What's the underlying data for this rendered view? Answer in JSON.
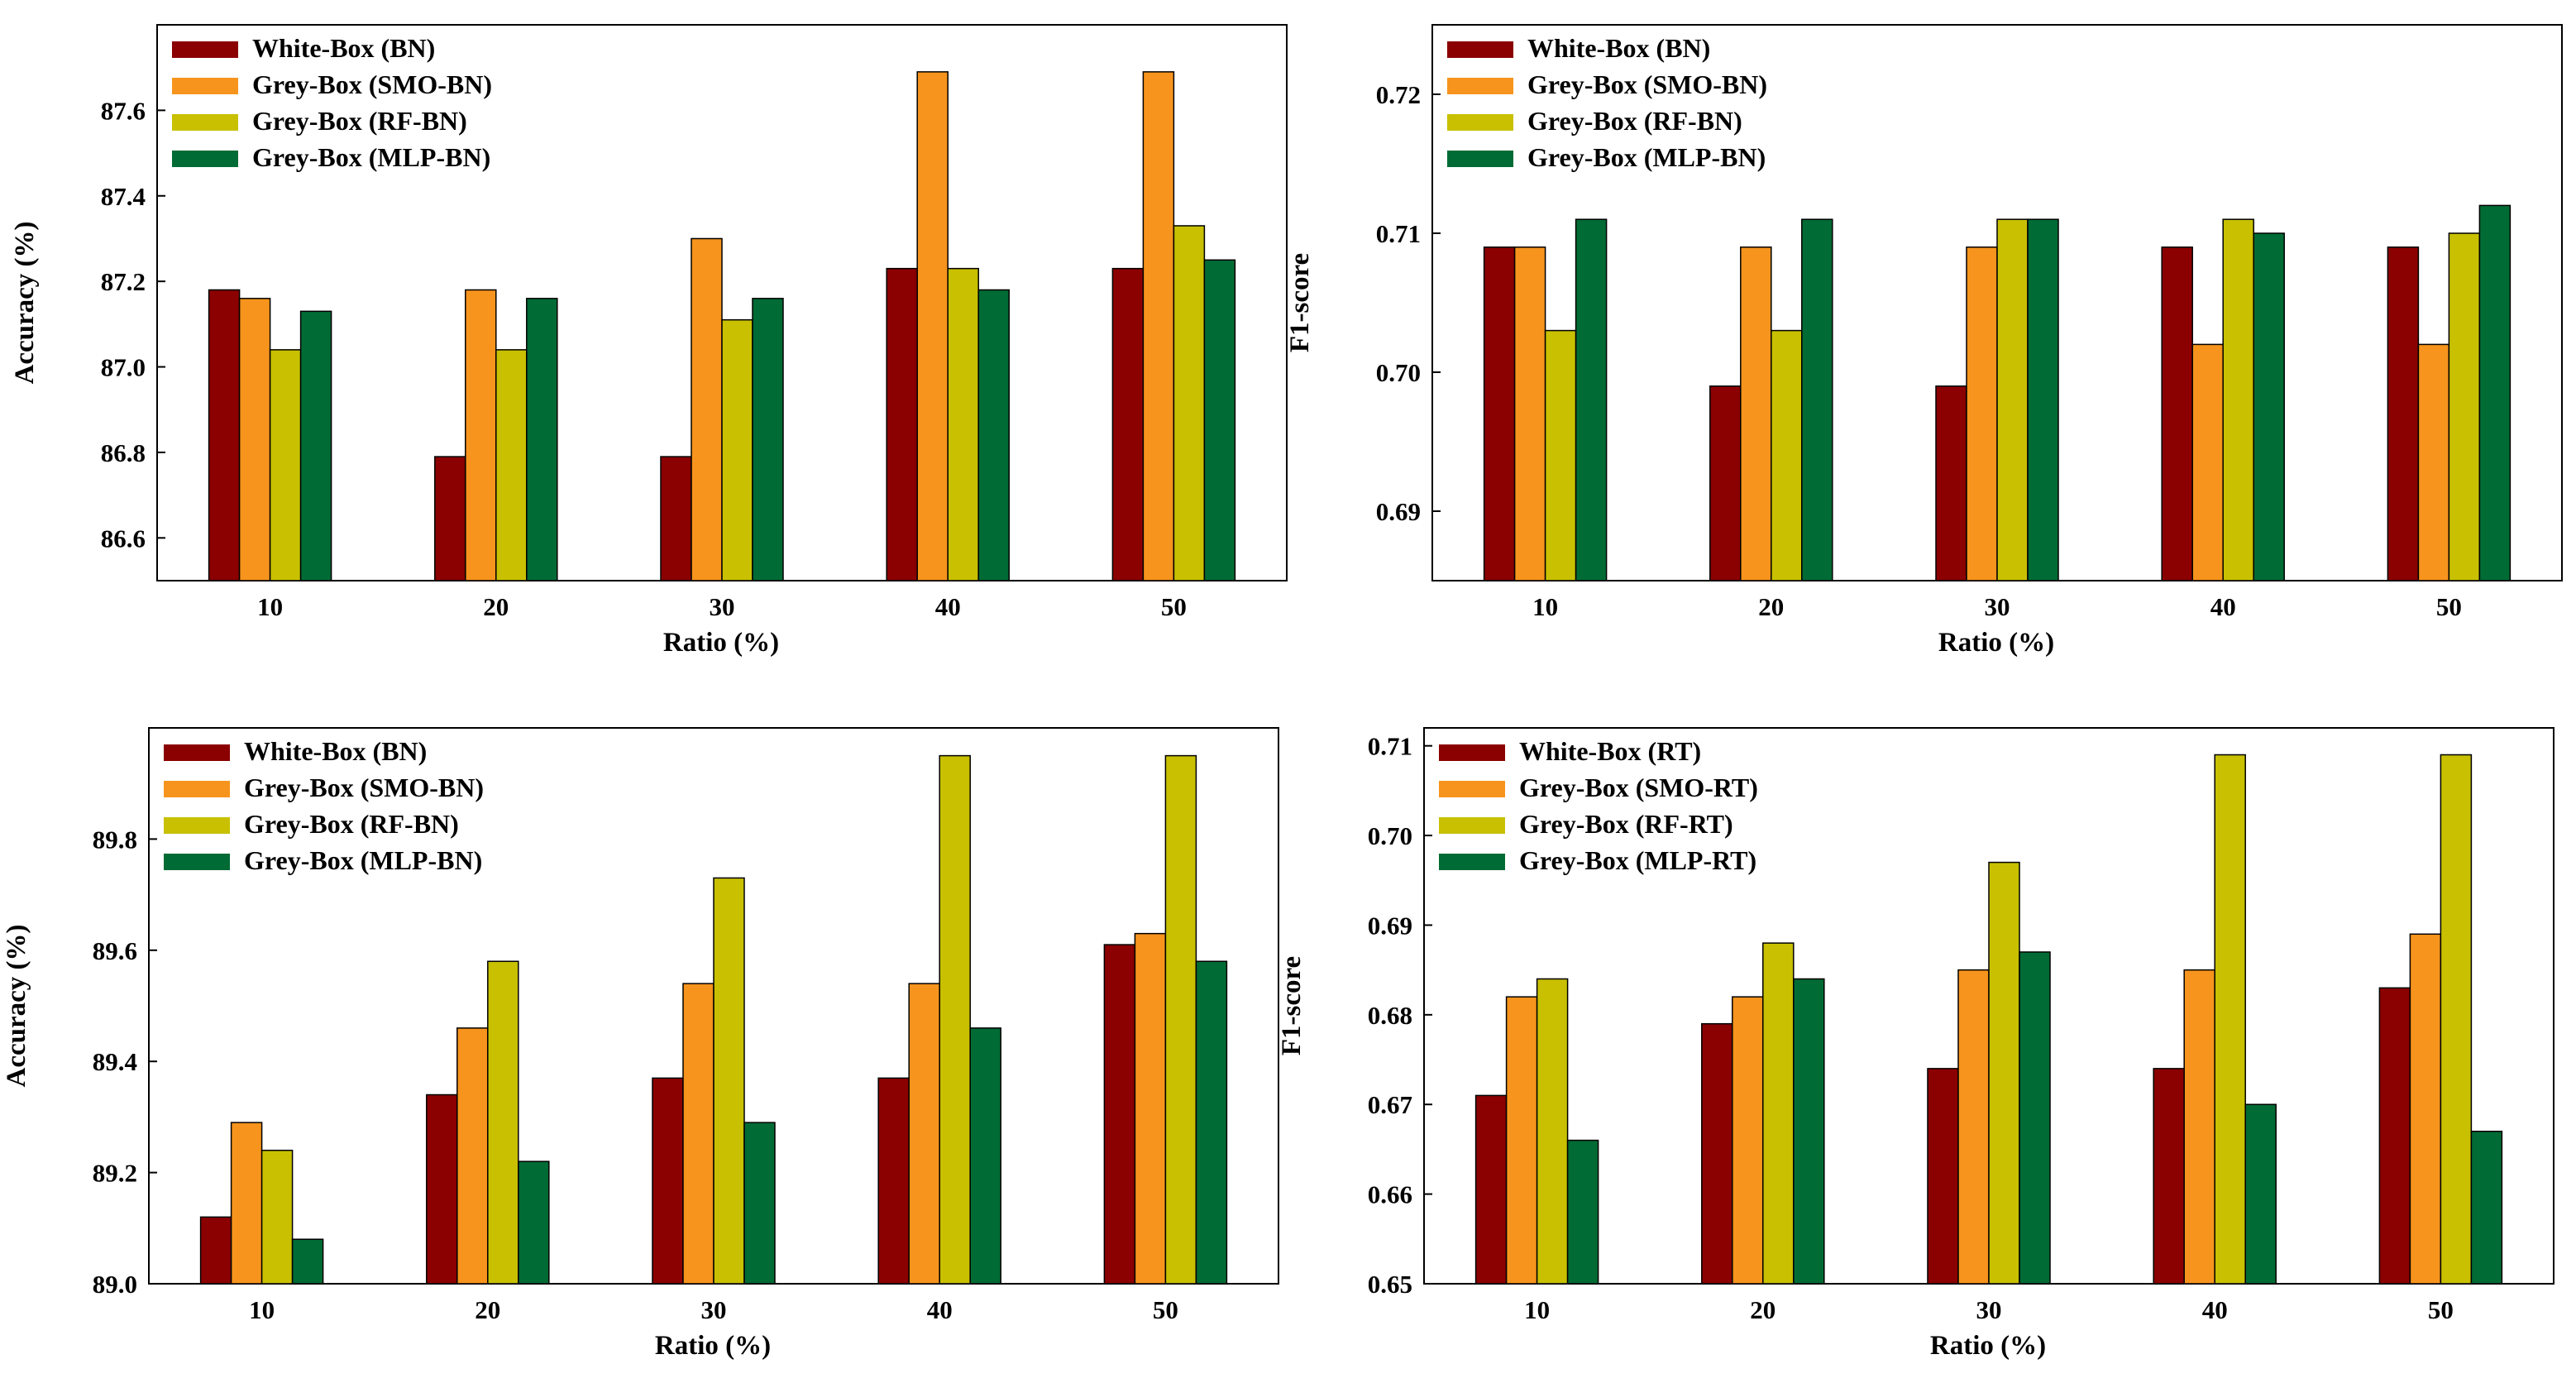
{
  "colors": {
    "white_box": "#8b0000",
    "grey_box_smo": "#f7941d",
    "grey_box_rf": "#c8c000",
    "grey_box_mlp": "#006b35"
  },
  "chart_data": [
    {
      "type": "bar",
      "panel": "top-left",
      "categories": [
        "10",
        "20",
        "30",
        "40",
        "50"
      ],
      "series": [
        {
          "name": "White-Box (BN)",
          "values": [
            87.18,
            86.79,
            86.79,
            87.23,
            87.23
          ]
        },
        {
          "name": "Grey-Box (SMO-BN)",
          "values": [
            87.16,
            87.18,
            87.3,
            87.69,
            87.69
          ]
        },
        {
          "name": "Grey-Box (RF-BN)",
          "values": [
            87.04,
            87.04,
            87.11,
            87.23,
            87.33
          ]
        },
        {
          "name": "Grey-Box (MLP-BN)",
          "values": [
            87.13,
            87.16,
            87.16,
            87.18,
            87.25
          ]
        }
      ],
      "xlabel": "Ratio (%)",
      "ylabel": "Accuracy (%)",
      "ylim": [
        86.5,
        87.8
      ],
      "yticks": [
        "86.6",
        "86.8",
        "87.0",
        "87.2",
        "87.4",
        "87.6"
      ],
      "legend": "top-left"
    },
    {
      "type": "bar",
      "panel": "top-right",
      "categories": [
        "10",
        "20",
        "30",
        "40",
        "50"
      ],
      "series": [
        {
          "name": "White-Box (BN)",
          "values": [
            0.709,
            0.699,
            0.699,
            0.709,
            0.709
          ]
        },
        {
          "name": "Grey-Box (SMO-BN)",
          "values": [
            0.709,
            0.709,
            0.709,
            0.702,
            0.702
          ]
        },
        {
          "name": "Grey-Box (RF-BN)",
          "values": [
            0.703,
            0.703,
            0.711,
            0.711,
            0.71
          ]
        },
        {
          "name": "Grey-Box (MLP-BN)",
          "values": [
            0.711,
            0.711,
            0.711,
            0.71,
            0.712
          ]
        }
      ],
      "xlabel": "Ratio (%)",
      "ylabel": "F1-score",
      "ylim": [
        0.685,
        0.725
      ],
      "yticks": [
        "0.69",
        "0.70",
        "0.71",
        "0.72"
      ],
      "legend": "top-left"
    },
    {
      "type": "bar",
      "panel": "bottom-left",
      "categories": [
        "10",
        "20",
        "30",
        "40",
        "50"
      ],
      "series": [
        {
          "name": "White-Box (BN)",
          "values": [
            89.12,
            89.34,
            89.37,
            89.37,
            89.61
          ]
        },
        {
          "name": "Grey-Box (SMO-BN)",
          "values": [
            89.29,
            89.46,
            89.54,
            89.54,
            89.63
          ]
        },
        {
          "name": "Grey-Box (RF-BN)",
          "values": [
            89.24,
            89.58,
            89.73,
            89.95,
            89.95
          ]
        },
        {
          "name": "Grey-Box (MLP-BN)",
          "values": [
            89.08,
            89.22,
            89.29,
            89.46,
            89.58
          ]
        }
      ],
      "xlabel": "Ratio (%)",
      "ylabel": "Accuracy (%)",
      "ylim": [
        89.0,
        90.0
      ],
      "yticks": [
        "89.0",
        "89.2",
        "89.4",
        "89.6",
        "89.8"
      ],
      "legend": "top-left"
    },
    {
      "type": "bar",
      "panel": "bottom-right",
      "categories": [
        "10",
        "20",
        "30",
        "40",
        "50"
      ],
      "series": [
        {
          "name": "White-Box (RT)",
          "values": [
            0.671,
            0.679,
            0.674,
            0.674,
            0.683
          ]
        },
        {
          "name": "Grey-Box (SMO-RT)",
          "values": [
            0.682,
            0.682,
            0.685,
            0.685,
            0.689
          ]
        },
        {
          "name": "Grey-Box (RF-RT)",
          "values": [
            0.684,
            0.688,
            0.697,
            0.709,
            0.709
          ]
        },
        {
          "name": "Grey-Box (MLP-RT)",
          "values": [
            0.666,
            0.684,
            0.687,
            0.67,
            0.667
          ]
        }
      ],
      "xlabel": "Ratio (%)",
      "ylabel": "F1-score",
      "ylim": [
        0.65,
        0.712
      ],
      "yticks": [
        "0.65",
        "0.66",
        "0.67",
        "0.68",
        "0.69",
        "0.70",
        "0.71"
      ],
      "legend": "top-left"
    }
  ]
}
